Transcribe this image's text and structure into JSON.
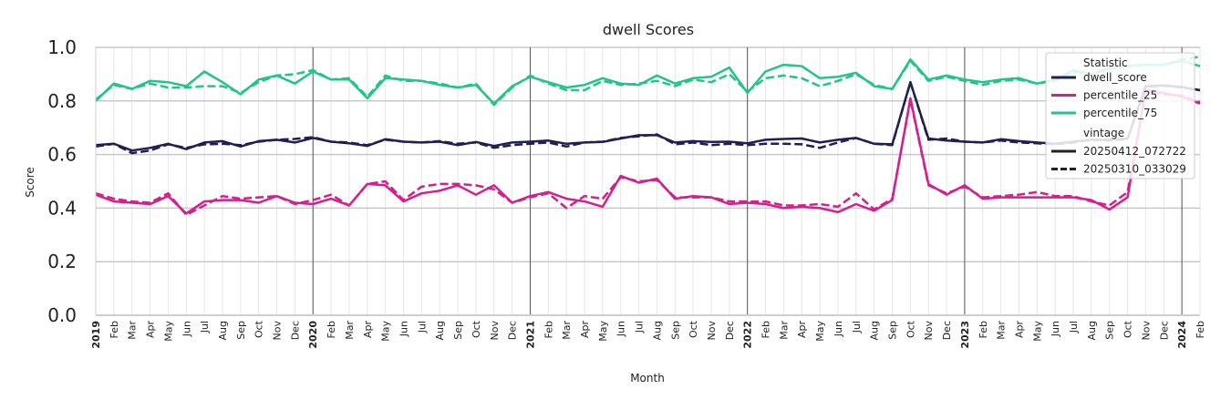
{
  "chart_data": {
    "type": "line",
    "title": "dwell Scores",
    "xlabel": "Month",
    "ylabel": "Score",
    "ylim": [
      0.0,
      1.0
    ],
    "yticks": [
      "0.0",
      "0.2",
      "0.4",
      "0.6",
      "0.8",
      "1.0"
    ],
    "x": [
      "2019-01",
      "2019-02",
      "2019-03",
      "2019-04",
      "2019-05",
      "2019-06",
      "2019-07",
      "2019-08",
      "2019-09",
      "2019-10",
      "2019-11",
      "2019-12",
      "2020-01",
      "2020-02",
      "2020-03",
      "2020-04",
      "2020-05",
      "2020-06",
      "2020-07",
      "2020-08",
      "2020-09",
      "2020-10",
      "2020-11",
      "2020-12",
      "2021-01",
      "2021-02",
      "2021-03",
      "2021-04",
      "2021-05",
      "2021-06",
      "2021-07",
      "2021-08",
      "2021-09",
      "2021-10",
      "2021-11",
      "2021-12",
      "2022-01",
      "2022-02",
      "2022-03",
      "2022-04",
      "2022-05",
      "2022-06",
      "2022-07",
      "2022-08",
      "2022-09",
      "2022-10",
      "2022-11",
      "2022-12",
      "2023-01",
      "2023-02",
      "2023-03",
      "2023-04",
      "2023-05",
      "2023-06",
      "2023-07",
      "2023-08",
      "2023-09",
      "2023-10",
      "2023-11",
      "2023-12",
      "2024-01",
      "2024-02"
    ],
    "xticklabels": [
      "2019",
      "Feb",
      "Mar",
      "Apr",
      "May",
      "Jun",
      "Jul",
      "Aug",
      "Sep",
      "Oct",
      "Nov",
      "Dec",
      "2020",
      "Feb",
      "Mar",
      "Apr",
      "May",
      "Jun",
      "Jul",
      "Aug",
      "Sep",
      "Oct",
      "Nov",
      "Dec",
      "2021",
      "Feb",
      "Mar",
      "Apr",
      "May",
      "Jun",
      "Jul",
      "Aug",
      "Sep",
      "Oct",
      "Nov",
      "Dec",
      "2022",
      "Feb",
      "Mar",
      "Apr",
      "May",
      "Jun",
      "Jul",
      "Aug",
      "Sep",
      "Oct",
      "Nov",
      "Dec",
      "2023",
      "Feb",
      "Mar",
      "Apr",
      "May",
      "Jun",
      "Jul",
      "Aug",
      "Sep",
      "Oct",
      "Nov",
      "Dec",
      "2024",
      "Feb"
    ],
    "grid": true,
    "legend": {
      "placement": "top-right",
      "statistic_title": "Statistic",
      "vintage_title": "vintage",
      "statistics": [
        {
          "name": "dwell_score",
          "color": "#1f1f55"
        },
        {
          "name": "percentile_25",
          "color": "#d41f8c"
        },
        {
          "name": "percentile_75",
          "color": "#22c48a"
        }
      ],
      "vintages": [
        {
          "name": "20250412_072722",
          "style": "solid"
        },
        {
          "name": "20250310_033029",
          "style": "dashed"
        }
      ]
    },
    "series": [
      {
        "statistic": "dwell_score",
        "vintage": "20250412_072722",
        "values": [
          0.635,
          0.64,
          0.615,
          0.625,
          0.64,
          0.62,
          0.645,
          0.65,
          0.63,
          0.65,
          0.655,
          0.645,
          0.662,
          0.648,
          0.642,
          0.632,
          0.657,
          0.648,
          0.645,
          0.648,
          0.635,
          0.647,
          0.632,
          0.645,
          0.648,
          0.652,
          0.64,
          0.645,
          0.647,
          0.66,
          0.672,
          0.672,
          0.645,
          0.65,
          0.647,
          0.648,
          0.642,
          0.655,
          0.658,
          0.66,
          0.645,
          0.655,
          0.662,
          0.64,
          0.638,
          0.87,
          0.66,
          0.652,
          0.648,
          0.645,
          0.657,
          0.65,
          0.645,
          0.64,
          0.648,
          0.655,
          0.655,
          0.66,
          0.855,
          0.858,
          0.852,
          0.84
        ]
      },
      {
        "statistic": "dwell_score",
        "vintage": "20250310_033029",
        "values": [
          0.63,
          0.64,
          0.605,
          0.615,
          0.638,
          0.625,
          0.638,
          0.64,
          0.635,
          0.648,
          0.655,
          0.658,
          0.665,
          0.648,
          0.645,
          0.635,
          0.655,
          0.648,
          0.645,
          0.65,
          0.64,
          0.645,
          0.625,
          0.635,
          0.64,
          0.645,
          0.63,
          0.645,
          0.648,
          0.662,
          0.668,
          0.675,
          0.638,
          0.645,
          0.635,
          0.64,
          0.635,
          0.64,
          0.64,
          0.638,
          0.625,
          0.645,
          0.662,
          0.64,
          0.635,
          0.87,
          0.655,
          0.66,
          0.648,
          0.645,
          0.652,
          0.645,
          0.642,
          0.638,
          0.645,
          0.655,
          0.652,
          0.658,
          0.853,
          0.857,
          0.85,
          0.84
        ]
      },
      {
        "statistic": "percentile_25",
        "vintage": "20250412_072722",
        "values": [
          0.45,
          0.425,
          0.42,
          0.415,
          0.445,
          0.38,
          0.425,
          0.43,
          0.43,
          0.42,
          0.445,
          0.42,
          0.415,
          0.435,
          0.41,
          0.49,
          0.485,
          0.425,
          0.455,
          0.465,
          0.485,
          0.45,
          0.485,
          0.42,
          0.445,
          0.46,
          0.435,
          0.425,
          0.405,
          0.52,
          0.495,
          0.51,
          0.435,
          0.445,
          0.44,
          0.415,
          0.42,
          0.415,
          0.4,
          0.405,
          0.4,
          0.385,
          0.415,
          0.39,
          0.43,
          0.81,
          0.49,
          0.45,
          0.485,
          0.435,
          0.44,
          0.44,
          0.44,
          0.44,
          0.44,
          0.43,
          0.395,
          0.44,
          0.84,
          0.83,
          0.815,
          0.79
        ]
      },
      {
        "statistic": "percentile_25",
        "vintage": "20250310_033029",
        "values": [
          0.455,
          0.435,
          0.425,
          0.42,
          0.455,
          0.375,
          0.41,
          0.445,
          0.435,
          0.44,
          0.445,
          0.415,
          0.43,
          0.45,
          0.41,
          0.49,
          0.5,
          0.43,
          0.48,
          0.49,
          0.49,
          0.485,
          0.47,
          0.42,
          0.44,
          0.455,
          0.4,
          0.445,
          0.435,
          0.515,
          0.5,
          0.505,
          0.44,
          0.44,
          0.44,
          0.425,
          0.425,
          0.425,
          0.41,
          0.41,
          0.415,
          0.405,
          0.455,
          0.395,
          0.435,
          0.805,
          0.485,
          0.455,
          0.48,
          0.44,
          0.445,
          0.45,
          0.46,
          0.445,
          0.445,
          0.425,
          0.41,
          0.46,
          0.835,
          0.825,
          0.82,
          0.795
        ]
      },
      {
        "statistic": "percentile_75",
        "vintage": "20250412_072722",
        "values": [
          0.8,
          0.865,
          0.845,
          0.875,
          0.87,
          0.855,
          0.91,
          0.87,
          0.825,
          0.88,
          0.895,
          0.865,
          0.91,
          0.88,
          0.88,
          0.81,
          0.885,
          0.88,
          0.875,
          0.86,
          0.85,
          0.86,
          0.79,
          0.855,
          0.89,
          0.87,
          0.85,
          0.86,
          0.885,
          0.865,
          0.86,
          0.895,
          0.865,
          0.885,
          0.89,
          0.925,
          0.83,
          0.91,
          0.935,
          0.93,
          0.885,
          0.89,
          0.905,
          0.855,
          0.845,
          0.955,
          0.88,
          0.895,
          0.88,
          0.87,
          0.88,
          0.885,
          0.865,
          0.88,
          0.915,
          0.9,
          0.925,
          0.93,
          0.935,
          0.935,
          0.95,
          0.93
        ]
      },
      {
        "statistic": "percentile_75",
        "vintage": "20250310_033029",
        "values": [
          0.805,
          0.86,
          0.845,
          0.865,
          0.85,
          0.85,
          0.855,
          0.855,
          0.83,
          0.87,
          0.895,
          0.9,
          0.915,
          0.88,
          0.885,
          0.815,
          0.895,
          0.875,
          0.875,
          0.865,
          0.85,
          0.865,
          0.785,
          0.85,
          0.895,
          0.865,
          0.84,
          0.84,
          0.875,
          0.86,
          0.865,
          0.875,
          0.855,
          0.88,
          0.87,
          0.9,
          0.835,
          0.885,
          0.895,
          0.885,
          0.855,
          0.875,
          0.9,
          0.86,
          0.845,
          0.95,
          0.875,
          0.89,
          0.875,
          0.86,
          0.875,
          0.88,
          0.865,
          0.875,
          0.91,
          0.9,
          0.92,
          0.93,
          0.935,
          0.935,
          0.955,
          0.965
        ]
      }
    ]
  }
}
